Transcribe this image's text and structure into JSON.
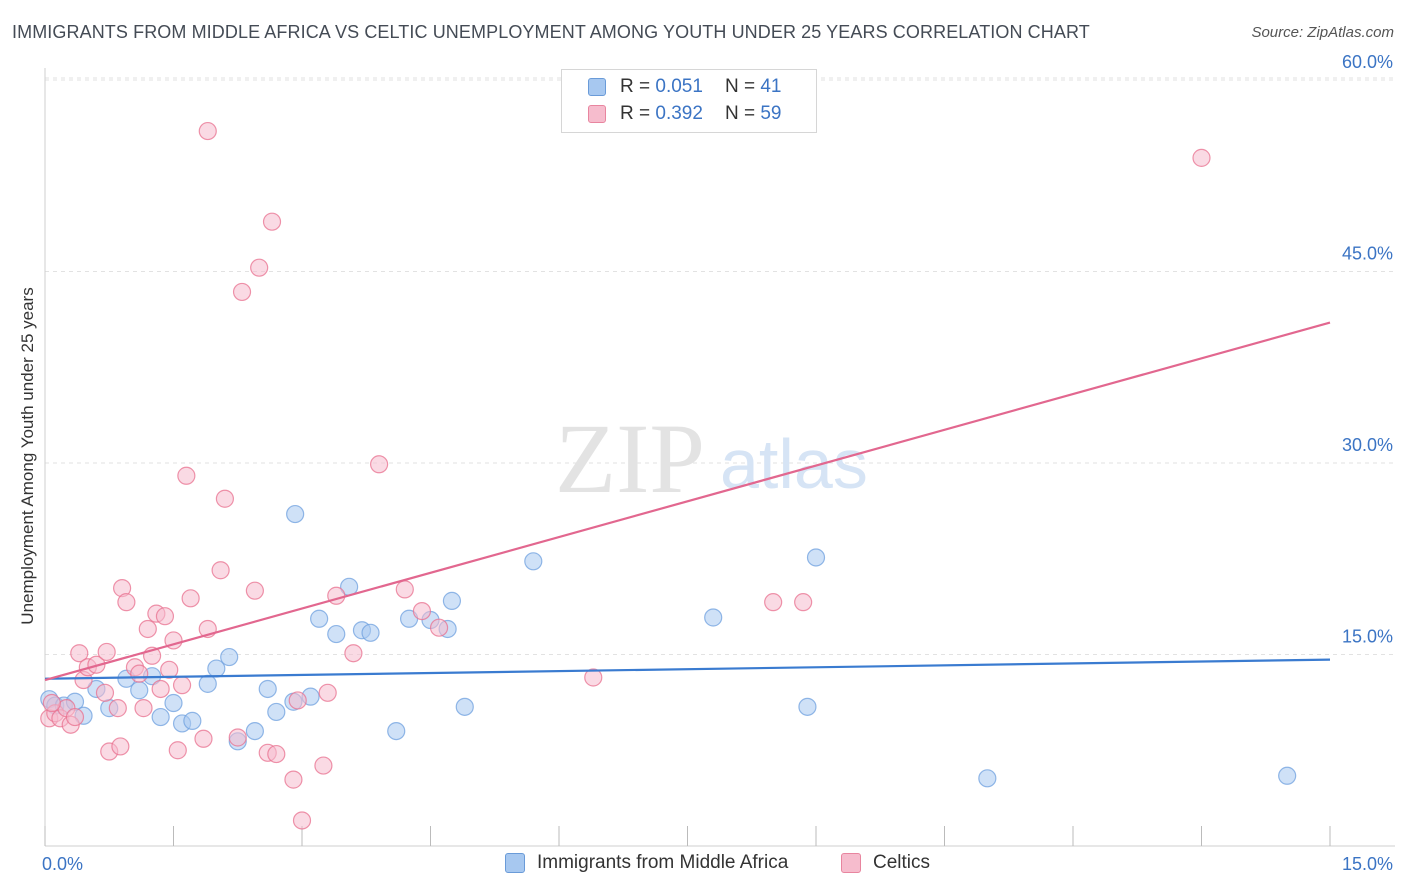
{
  "title": "IMMIGRANTS FROM MIDDLE AFRICA VS CELTIC UNEMPLOYMENT AMONG YOUTH UNDER 25 YEARS CORRELATION CHART",
  "source": "Source: ZipAtlas.com",
  "watermark": {
    "zip": "ZIP",
    "atlas": "atlas"
  },
  "legend": {
    "rows": [
      {
        "r_label": "R =",
        "r_value": "0.051",
        "n_label": "N =",
        "n_value": "41",
        "color": "#a7c8f0",
        "border": "#6a9bd8"
      },
      {
        "r_label": "R =",
        "r_value": "0.392",
        "n_label": "N =",
        "n_value": "59",
        "color": "#f6bccd",
        "border": "#e8859f"
      }
    ]
  },
  "bottom_legend": [
    {
      "label": "Immigrants from Middle Africa",
      "color": "#a7c8f0",
      "border": "#6a9bd8"
    },
    {
      "label": "Celtics",
      "color": "#f6bccd",
      "border": "#e8859f"
    }
  ],
  "chart_data": {
    "type": "scatter",
    "title": "IMMIGRANTS FROM MIDDLE AFRICA VS CELTIC UNEMPLOYMENT AMONG YOUTH UNDER 25 YEARS CORRELATION CHART",
    "xlabel": "",
    "ylabel": "Unemployment Among Youth under 25 years",
    "xlim": [
      0,
      15
    ],
    "ylim": [
      0,
      60
    ],
    "x_tick_labels": [
      "0.0%",
      "15.0%"
    ],
    "y_ticks": [
      15,
      30,
      45,
      60
    ],
    "y_tick_labels": [
      "15.0%",
      "30.0%",
      "45.0%",
      "60.0%"
    ],
    "grid": true,
    "series": [
      {
        "name": "Immigrants from Middle Africa",
        "color": "#6fa0df",
        "fill": "#a7c8f0",
        "trend": {
          "x": [
            0,
            15
          ],
          "y": [
            13.1,
            14.6
          ]
        },
        "points": [
          [
            0.05,
            11.5
          ],
          [
            0.12,
            11.0
          ],
          [
            0.22,
            11.0
          ],
          [
            0.35,
            11.3
          ],
          [
            0.45,
            10.2
          ],
          [
            0.6,
            12.3
          ],
          [
            0.75,
            10.8
          ],
          [
            0.95,
            13.1
          ],
          [
            1.1,
            12.2
          ],
          [
            1.25,
            13.3
          ],
          [
            1.35,
            10.1
          ],
          [
            1.5,
            11.2
          ],
          [
            1.6,
            9.6
          ],
          [
            1.72,
            9.8
          ],
          [
            1.9,
            12.7
          ],
          [
            2.0,
            13.9
          ],
          [
            2.15,
            14.8
          ],
          [
            2.25,
            8.2
          ],
          [
            2.45,
            9.0
          ],
          [
            2.6,
            12.3
          ],
          [
            2.7,
            10.5
          ],
          [
            2.9,
            11.3
          ],
          [
            2.92,
            26.0
          ],
          [
            3.1,
            11.7
          ],
          [
            3.2,
            17.8
          ],
          [
            3.4,
            16.6
          ],
          [
            3.55,
            20.3
          ],
          [
            3.7,
            16.9
          ],
          [
            3.8,
            16.7
          ],
          [
            4.25,
            17.8
          ],
          [
            4.5,
            17.7
          ],
          [
            4.7,
            17.0
          ],
          [
            4.75,
            19.2
          ],
          [
            4.9,
            10.9
          ],
          [
            4.1,
            9.0
          ],
          [
            5.7,
            22.3
          ],
          [
            7.8,
            17.9
          ],
          [
            8.9,
            10.9
          ],
          [
            9.0,
            22.6
          ],
          [
            11.0,
            5.3
          ],
          [
            14.5,
            5.5
          ]
        ]
      },
      {
        "name": "Celtics",
        "color": "#e8708f",
        "fill": "#f6bccd",
        "trend": {
          "x": [
            0,
            15
          ],
          "y": [
            13.0,
            41.0
          ]
        },
        "points": [
          [
            0.05,
            10.0
          ],
          [
            0.12,
            10.4
          ],
          [
            0.18,
            10.0
          ],
          [
            0.25,
            10.8
          ],
          [
            0.3,
            9.5
          ],
          [
            0.35,
            10.1
          ],
          [
            0.4,
            15.1
          ],
          [
            0.45,
            13.0
          ],
          [
            0.5,
            14.0
          ],
          [
            0.6,
            14.2
          ],
          [
            0.7,
            12.0
          ],
          [
            0.72,
            15.2
          ],
          [
            0.75,
            7.4
          ],
          [
            0.85,
            10.8
          ],
          [
            0.88,
            7.8
          ],
          [
            0.9,
            20.2
          ],
          [
            0.95,
            19.1
          ],
          [
            1.05,
            14.0
          ],
          [
            1.1,
            13.5
          ],
          [
            1.15,
            10.8
          ],
          [
            1.2,
            17.0
          ],
          [
            1.25,
            14.9
          ],
          [
            1.3,
            18.2
          ],
          [
            1.35,
            12.3
          ],
          [
            1.4,
            18.0
          ],
          [
            1.45,
            13.8
          ],
          [
            1.5,
            16.1
          ],
          [
            1.55,
            7.5
          ],
          [
            1.6,
            12.6
          ],
          [
            1.65,
            29.0
          ],
          [
            1.7,
            19.4
          ],
          [
            1.85,
            8.4
          ],
          [
            1.9,
            17.0
          ],
          [
            2.05,
            21.6
          ],
          [
            2.1,
            27.2
          ],
          [
            2.25,
            8.5
          ],
          [
            2.3,
            43.4
          ],
          [
            2.45,
            20.0
          ],
          [
            2.5,
            45.3
          ],
          [
            2.6,
            7.3
          ],
          [
            2.65,
            48.9
          ],
          [
            2.9,
            5.2
          ],
          [
            2.95,
            11.4
          ],
          [
            3.0,
            2.0
          ],
          [
            3.25,
            6.3
          ],
          [
            3.3,
            12.0
          ],
          [
            3.4,
            19.6
          ],
          [
            3.6,
            15.1
          ],
          [
            3.9,
            29.9
          ],
          [
            4.2,
            20.1
          ],
          [
            4.4,
            18.4
          ],
          [
            4.6,
            17.1
          ],
          [
            6.4,
            13.2
          ],
          [
            8.5,
            19.1
          ],
          [
            8.85,
            19.1
          ],
          [
            13.5,
            53.9
          ],
          [
            1.9,
            56.0
          ],
          [
            0.08,
            11.2
          ],
          [
            2.7,
            7.2
          ]
        ]
      }
    ]
  }
}
